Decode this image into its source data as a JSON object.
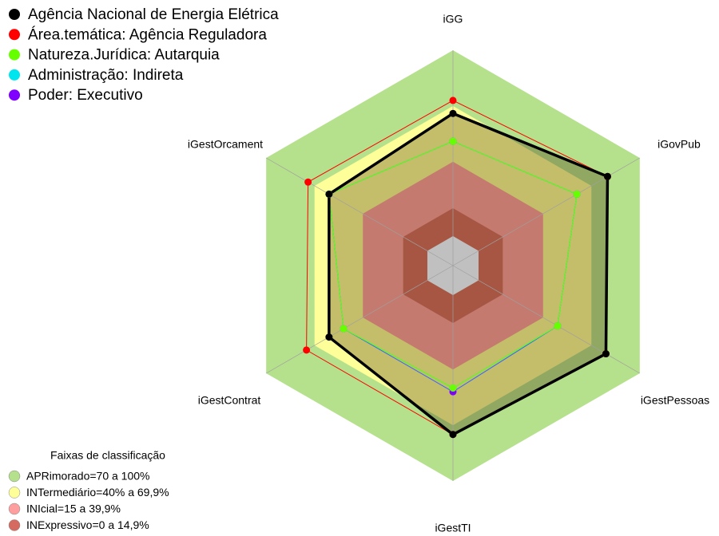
{
  "chart_data": {
    "type": "radar",
    "axes": [
      "iGG",
      "iGovPub",
      "iGestPessoas",
      "iGestTI",
      "iGestContrat",
      "iGestOrcament"
    ],
    "rlim": [
      0,
      100
    ],
    "series": [
      {
        "name": "Agência Nacional de Energia Elétrica",
        "color": "#000000",
        "values": [
          66,
          80,
          79,
          75,
          61,
          61
        ]
      },
      {
        "name": "Área.temática: Agência Reguladora",
        "color": "#ff0000",
        "values": [
          73,
          80,
          79,
          75,
          75,
          74
        ]
      },
      {
        "name": "Natureza.Jurídica: Autarquia",
        "color": "#66ff00",
        "values": [
          51,
          61,
          49,
          50,
          52,
          61
        ]
      },
      {
        "name": "Administração: Indireta",
        "color": "#00e5ee",
        "values": [
          51,
          61,
          49,
          50,
          52,
          61
        ]
      },
      {
        "name": "Poder: Executivo",
        "color": "#8000ff",
        "values": [
          51,
          61,
          49,
          52,
          52,
          61
        ]
      }
    ],
    "bands_title": "Faixas de classificação",
    "bands": [
      {
        "label": "APRimorado=70 a 100%",
        "color": "#b5e08c",
        "to": 100
      },
      {
        "label": "INTermediário=40% a 69,9%",
        "color": "#ffff99",
        "to": 70
      },
      {
        "label": "INIcial=15 a 39,9%",
        "color": "#ff9e9e",
        "to": 40
      },
      {
        "label": "INExpressivo=0 a 14,9%",
        "color": "#d46a60",
        "to": 15
      }
    ]
  }
}
